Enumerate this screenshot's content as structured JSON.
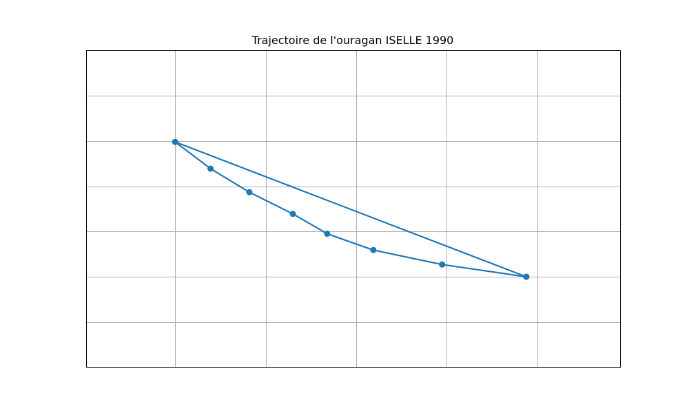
{
  "chart_data": {
    "type": "line",
    "title": "Trajectoire de l'ouragan ISELLE 1990",
    "xlabel": "",
    "ylabel": "",
    "xlim": [
      0,
      5.9
    ],
    "ylim": [
      0,
      7
    ],
    "x_gridlines": [
      0.98,
      1.98,
      2.98,
      3.98,
      4.98
    ],
    "y_gridlines": [
      1,
      2,
      3,
      4,
      5,
      6
    ],
    "grid": true,
    "tick_labels_visible": false,
    "series": [
      {
        "color": "#1f77b4",
        "marker": "circle",
        "points": [
          {
            "x": 4.86,
            "y": 2.0
          },
          {
            "x": 3.93,
            "y": 2.27
          },
          {
            "x": 3.17,
            "y": 2.59
          },
          {
            "x": 2.66,
            "y": 2.95
          },
          {
            "x": 2.28,
            "y": 3.39
          },
          {
            "x": 1.8,
            "y": 3.87
          },
          {
            "x": 1.37,
            "y": 4.39
          },
          {
            "x": 0.98,
            "y": 4.98
          },
          {
            "x": 4.86,
            "y": 2.0
          }
        ]
      }
    ]
  }
}
